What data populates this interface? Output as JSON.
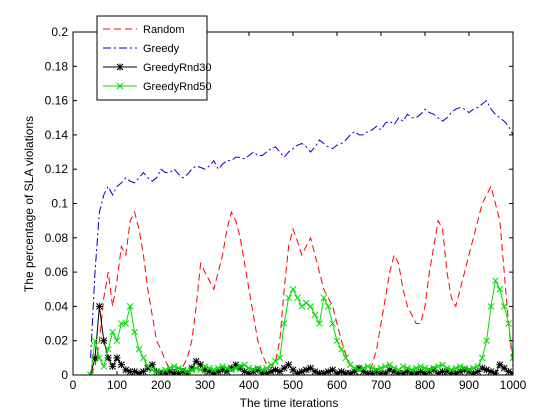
{
  "chart_data": {
    "type": "line",
    "xlabel": "The time iterations",
    "ylabel": "The percentage of SLA violations",
    "xlim": [
      0,
      1000
    ],
    "ylim": [
      0,
      0.2
    ],
    "xticks": [
      "0",
      "100",
      "200",
      "300",
      "400",
      "500",
      "600",
      "700",
      "800",
      "900",
      "1000"
    ],
    "yticks": [
      "0",
      "0.02",
      "0.04",
      "0.06",
      "0.08",
      "0.1",
      "0.12",
      "0.14",
      "0.16",
      "0.18",
      "0.2"
    ],
    "grid": false,
    "legend_position": "top-left",
    "series": [
      {
        "name": "Random",
        "color": "#ff0000",
        "style": "dashed",
        "x": [
          40,
          50,
          60,
          70,
          80,
          90,
          100,
          110,
          120,
          130,
          140,
          150,
          160,
          170,
          180,
          190,
          200,
          210,
          220,
          230,
          240,
          250,
          260,
          270,
          280,
          290,
          300,
          310,
          320,
          330,
          340,
          350,
          360,
          370,
          380,
          390,
          400,
          410,
          420,
          430,
          440,
          450,
          460,
          470,
          480,
          490,
          500,
          510,
          520,
          530,
          540,
          550,
          560,
          570,
          580,
          590,
          600,
          610,
          620,
          630,
          640,
          650,
          660,
          670,
          680,
          690,
          700,
          710,
          720,
          730,
          740,
          750,
          760,
          770,
          780,
          790,
          800,
          810,
          820,
          830,
          840,
          850,
          860,
          870,
          880,
          890,
          900,
          910,
          920,
          930,
          940,
          950,
          960,
          970,
          980,
          990,
          1000
        ],
        "y": [
          0,
          0.005,
          0.02,
          0.045,
          0.06,
          0.04,
          0.055,
          0.075,
          0.07,
          0.09,
          0.095,
          0.085,
          0.07,
          0.05,
          0.035,
          0.02,
          0.015,
          0.008,
          0.004,
          0.003,
          0.004,
          0.005,
          0.01,
          0.02,
          0.04,
          0.065,
          0.06,
          0.055,
          0.05,
          0.06,
          0.07,
          0.085,
          0.095,
          0.09,
          0.08,
          0.065,
          0.05,
          0.035,
          0.02,
          0.012,
          0.006,
          0.004,
          0.008,
          0.02,
          0.05,
          0.075,
          0.085,
          0.078,
          0.07,
          0.075,
          0.08,
          0.07,
          0.06,
          0.05,
          0.045,
          0.04,
          0.03,
          0.02,
          0.012,
          0.006,
          0.002,
          0,
          0,
          0,
          0.006,
          0.015,
          0.03,
          0.045,
          0.06,
          0.07,
          0.065,
          0.05,
          0.04,
          0.035,
          0.03,
          0.03,
          0.04,
          0.06,
          0.075,
          0.09,
          0.085,
          0.06,
          0.045,
          0.04,
          0.05,
          0.06,
          0.07,
          0.08,
          0.09,
          0.1,
          0.105,
          0.11,
          0.1,
          0.09,
          0.06,
          0.03,
          0.005
        ]
      },
      {
        "name": "Greedy",
        "color": "#0000cc",
        "style": "dashdot",
        "x": [
          40,
          50,
          60,
          70,
          80,
          90,
          100,
          110,
          120,
          130,
          140,
          150,
          160,
          170,
          180,
          190,
          200,
          210,
          220,
          230,
          240,
          250,
          260,
          270,
          280,
          290,
          300,
          310,
          320,
          330,
          340,
          350,
          360,
          370,
          380,
          390,
          400,
          410,
          420,
          430,
          440,
          450,
          460,
          470,
          480,
          490,
          500,
          510,
          520,
          530,
          540,
          550,
          560,
          570,
          580,
          590,
          600,
          610,
          620,
          630,
          640,
          650,
          660,
          670,
          680,
          690,
          700,
          710,
          720,
          730,
          740,
          750,
          760,
          770,
          780,
          790,
          800,
          810,
          820,
          830,
          840,
          850,
          860,
          870,
          880,
          890,
          900,
          910,
          920,
          930,
          940,
          950,
          960,
          970,
          980,
          990,
          1000
        ],
        "y": [
          0.01,
          0.06,
          0.095,
          0.105,
          0.11,
          0.105,
          0.11,
          0.112,
          0.115,
          0.113,
          0.112,
          0.115,
          0.118,
          0.115,
          0.113,
          0.115,
          0.12,
          0.118,
          0.118,
          0.12,
          0.117,
          0.115,
          0.117,
          0.12,
          0.122,
          0.121,
          0.12,
          0.122,
          0.125,
          0.12,
          0.123,
          0.125,
          0.125,
          0.127,
          0.127,
          0.126,
          0.128,
          0.13,
          0.128,
          0.128,
          0.13,
          0.132,
          0.133,
          0.13,
          0.127,
          0.13,
          0.132,
          0.134,
          0.135,
          0.133,
          0.13,
          0.133,
          0.137,
          0.135,
          0.133,
          0.132,
          0.134,
          0.135,
          0.137,
          0.14,
          0.142,
          0.14,
          0.14,
          0.142,
          0.143,
          0.145,
          0.143,
          0.147,
          0.148,
          0.146,
          0.15,
          0.148,
          0.152,
          0.15,
          0.15,
          0.152,
          0.155,
          0.153,
          0.152,
          0.15,
          0.148,
          0.15,
          0.153,
          0.155,
          0.156,
          0.155,
          0.153,
          0.155,
          0.156,
          0.158,
          0.16,
          0.155,
          0.152,
          0.15,
          0.148,
          0.145,
          0.14
        ]
      },
      {
        "name": "GreedyRnd30",
        "color": "#000000",
        "style": "solid-star",
        "x": [
          40,
          50,
          60,
          70,
          80,
          90,
          100,
          110,
          120,
          130,
          140,
          150,
          160,
          170,
          180,
          190,
          200,
          210,
          220,
          230,
          240,
          250,
          260,
          270,
          280,
          290,
          300,
          310,
          320,
          330,
          340,
          350,
          360,
          370,
          380,
          390,
          400,
          410,
          420,
          430,
          440,
          450,
          460,
          470,
          480,
          490,
          500,
          510,
          520,
          530,
          540,
          550,
          560,
          570,
          580,
          590,
          600,
          610,
          620,
          630,
          640,
          650,
          660,
          670,
          680,
          690,
          700,
          710,
          720,
          730,
          740,
          750,
          760,
          770,
          780,
          790,
          800,
          810,
          820,
          830,
          840,
          850,
          860,
          870,
          880,
          890,
          900,
          910,
          920,
          930,
          940,
          950,
          960,
          970,
          980,
          990,
          1000
        ],
        "y": [
          0,
          0.01,
          0.04,
          0.02,
          0.01,
          0.005,
          0.01,
          0.006,
          0.003,
          0.002,
          0.002,
          0.001,
          0.002,
          0.004,
          0.006,
          0.002,
          0.001,
          0.001,
          0.002,
          0.001,
          0.001,
          0.002,
          0.001,
          0.004,
          0.008,
          0.006,
          0.003,
          0.002,
          0.001,
          0.002,
          0.003,
          0.002,
          0.004,
          0.006,
          0.004,
          0.002,
          0.001,
          0.002,
          0.003,
          0.001,
          0.001,
          0.002,
          0.003,
          0.002,
          0.004,
          0.006,
          0.003,
          0.001,
          0.002,
          0.003,
          0.004,
          0.002,
          0.001,
          0.001,
          0.002,
          0.003,
          0.001,
          0.002,
          0.001,
          0.001,
          0.002,
          0.004,
          0.002,
          0.001,
          0.001,
          0.002,
          0.001,
          0.001,
          0.003,
          0.002,
          0.001,
          0.001,
          0.002,
          0.001,
          0.001,
          0.002,
          0.001,
          0.002,
          0.003,
          0.001,
          0.002,
          0.002,
          0.001,
          0.001,
          0.002,
          0.003,
          0.002,
          0.001,
          0.002,
          0.004,
          0.003,
          0.002,
          0.001,
          0.006,
          0.004,
          0.002,
          0.001
        ]
      },
      {
        "name": "GreedyRnd50",
        "color": "#00dd00",
        "style": "solid-x",
        "x": [
          40,
          50,
          60,
          70,
          80,
          90,
          100,
          110,
          120,
          130,
          140,
          150,
          160,
          170,
          180,
          190,
          200,
          210,
          220,
          230,
          240,
          250,
          260,
          270,
          280,
          290,
          300,
          310,
          320,
          330,
          340,
          350,
          360,
          370,
          380,
          390,
          400,
          410,
          420,
          430,
          440,
          450,
          460,
          470,
          480,
          490,
          500,
          510,
          520,
          530,
          540,
          550,
          560,
          570,
          580,
          590,
          600,
          610,
          620,
          630,
          640,
          650,
          660,
          670,
          680,
          690,
          700,
          710,
          720,
          730,
          740,
          750,
          760,
          770,
          780,
          790,
          800,
          810,
          820,
          830,
          840,
          850,
          860,
          870,
          880,
          890,
          900,
          910,
          920,
          930,
          940,
          950,
          960,
          970,
          980,
          990,
          1000
        ],
        "y": [
          0,
          0.02,
          0.01,
          0.005,
          0.015,
          0.025,
          0.02,
          0.03,
          0.03,
          0.04,
          0.025,
          0.015,
          0.01,
          0.005,
          0.003,
          0.002,
          0.002,
          0.003,
          0.004,
          0.005,
          0.004,
          0.003,
          0.002,
          0.003,
          0.004,
          0.003,
          0.005,
          0.004,
          0.003,
          0.004,
          0.005,
          0.004,
          0.003,
          0.004,
          0.005,
          0.006,
          0.004,
          0.003,
          0.004,
          0.003,
          0.004,
          0.006,
          0.008,
          0.01,
          0.03,
          0.045,
          0.05,
          0.045,
          0.04,
          0.042,
          0.04,
          0.035,
          0.03,
          0.045,
          0.04,
          0.03,
          0.02,
          0.015,
          0.01,
          0.006,
          0.004,
          0.003,
          0.004,
          0.005,
          0.004,
          0.003,
          0.004,
          0.005,
          0.006,
          0.004,
          0.003,
          0.005,
          0.004,
          0.003,
          0.004,
          0.005,
          0.004,
          0.003,
          0.004,
          0.005,
          0.006,
          0.004,
          0.003,
          0.004,
          0.005,
          0.004,
          0.003,
          0.004,
          0.005,
          0.01,
          0.02,
          0.04,
          0.055,
          0.05,
          0.04,
          0.03,
          0.01
        ]
      }
    ]
  }
}
